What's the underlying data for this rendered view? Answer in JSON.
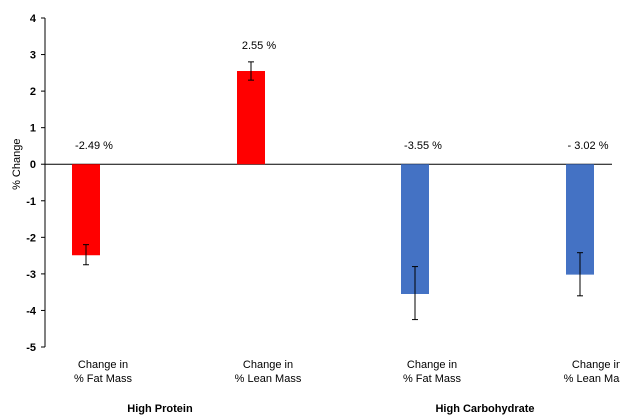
{
  "chart_data": {
    "type": "bar",
    "ylabel": "% Change",
    "ylim": [
      -5,
      4
    ],
    "yticks": [
      4,
      3,
      2,
      1,
      0,
      -1,
      -2,
      -3,
      -4,
      -5
    ],
    "grid": false,
    "categories": [
      {
        "line1": "Change  in",
        "line2": "% Fat Mass",
        "group": "High Protein",
        "value": -2.49,
        "label": "-2.49 %",
        "err_low": -2.75,
        "err_high": -2.2,
        "color": "#ff0000"
      },
      {
        "line1": "Change   in",
        "line2": "% Lean Mass",
        "group": "High Protein",
        "value": 2.55,
        "label": "2.55 %",
        "err_low": 2.3,
        "err_high": 2.8,
        "color": "#ff0000"
      },
      {
        "line1": "Change  in",
        "line2": "% Fat Mass",
        "group": "High Carbohydrate",
        "value": -3.55,
        "label": "-3.55 %",
        "err_low": -4.25,
        "err_high": -2.8,
        "color": "#4472c4"
      },
      {
        "line1": "Change in",
        "line2": "% Lean Mass",
        "group": "High Carbohydrate",
        "value": -3.02,
        "label": "- 3.02 %",
        "err_low": -3.6,
        "err_high": -2.42,
        "color": "#4472c4"
      }
    ],
    "groups": [
      "High Protein",
      "High Carbohydrate"
    ]
  }
}
